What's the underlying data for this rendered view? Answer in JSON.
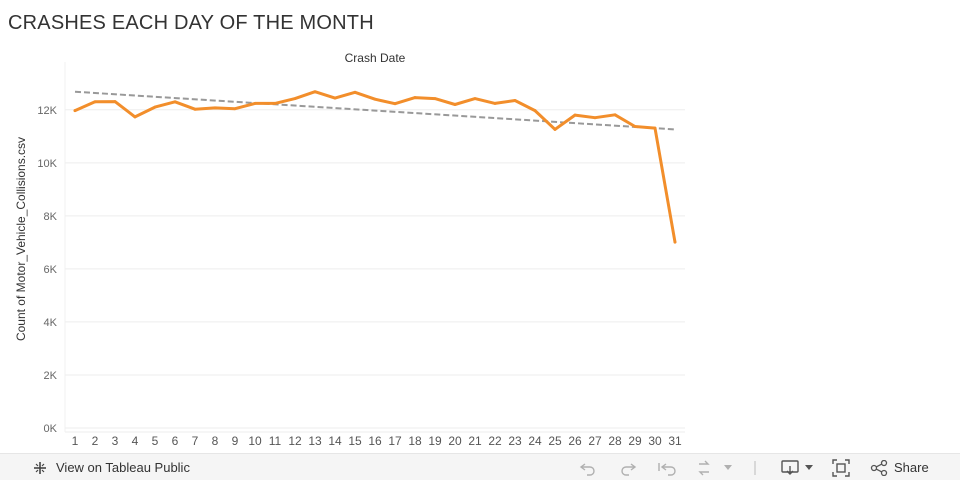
{
  "title": "CRASHES EACH DAY OF THE MONTH",
  "chart_data": {
    "type": "line",
    "title": "Crash Date",
    "xlabel": "",
    "ylabel": "Count of Motor_Vehicle_Collisions.csv",
    "categories": [
      "1",
      "2",
      "3",
      "4",
      "5",
      "6",
      "7",
      "8",
      "9",
      "10",
      "11",
      "12",
      "13",
      "14",
      "15",
      "16",
      "17",
      "18",
      "19",
      "20",
      "21",
      "22",
      "23",
      "24",
      "25",
      "26",
      "27",
      "28",
      "29",
      "30",
      "31"
    ],
    "series": [
      {
        "color": "#f28e2b",
        "values": [
          11970,
          12300,
          12310,
          11730,
          12100,
          12300,
          12020,
          12070,
          12040,
          12240,
          12240,
          12420,
          12680,
          12440,
          12660,
          12400,
          12230,
          12460,
          12420,
          12200,
          12420,
          12240,
          12350,
          11970,
          11260,
          11800,
          11700,
          11810,
          11370,
          11310,
          7010
        ]
      }
    ],
    "trend_line": {
      "color": "#999999",
      "start": 12680,
      "end": 11260
    },
    "ylim": [
      0,
      13500
    ],
    "yticks": [
      0,
      2000,
      4000,
      6000,
      8000,
      10000,
      12000
    ],
    "ytick_labels": [
      "0K",
      "2K",
      "4K",
      "6K",
      "8K",
      "10K",
      "12K"
    ],
    "grid": true,
    "legend": "none"
  },
  "toolbar": {
    "view_label": "View on Tableau Public",
    "share_label": "Share",
    "icons": {
      "tableau": "tableau-logo-icon",
      "undo": "undo-icon",
      "redo": "redo-icon",
      "revert": "revert-icon",
      "refresh": "refresh-icon",
      "download": "download-icon",
      "fullscreen": "fullscreen-icon",
      "share": "share-icon"
    }
  }
}
